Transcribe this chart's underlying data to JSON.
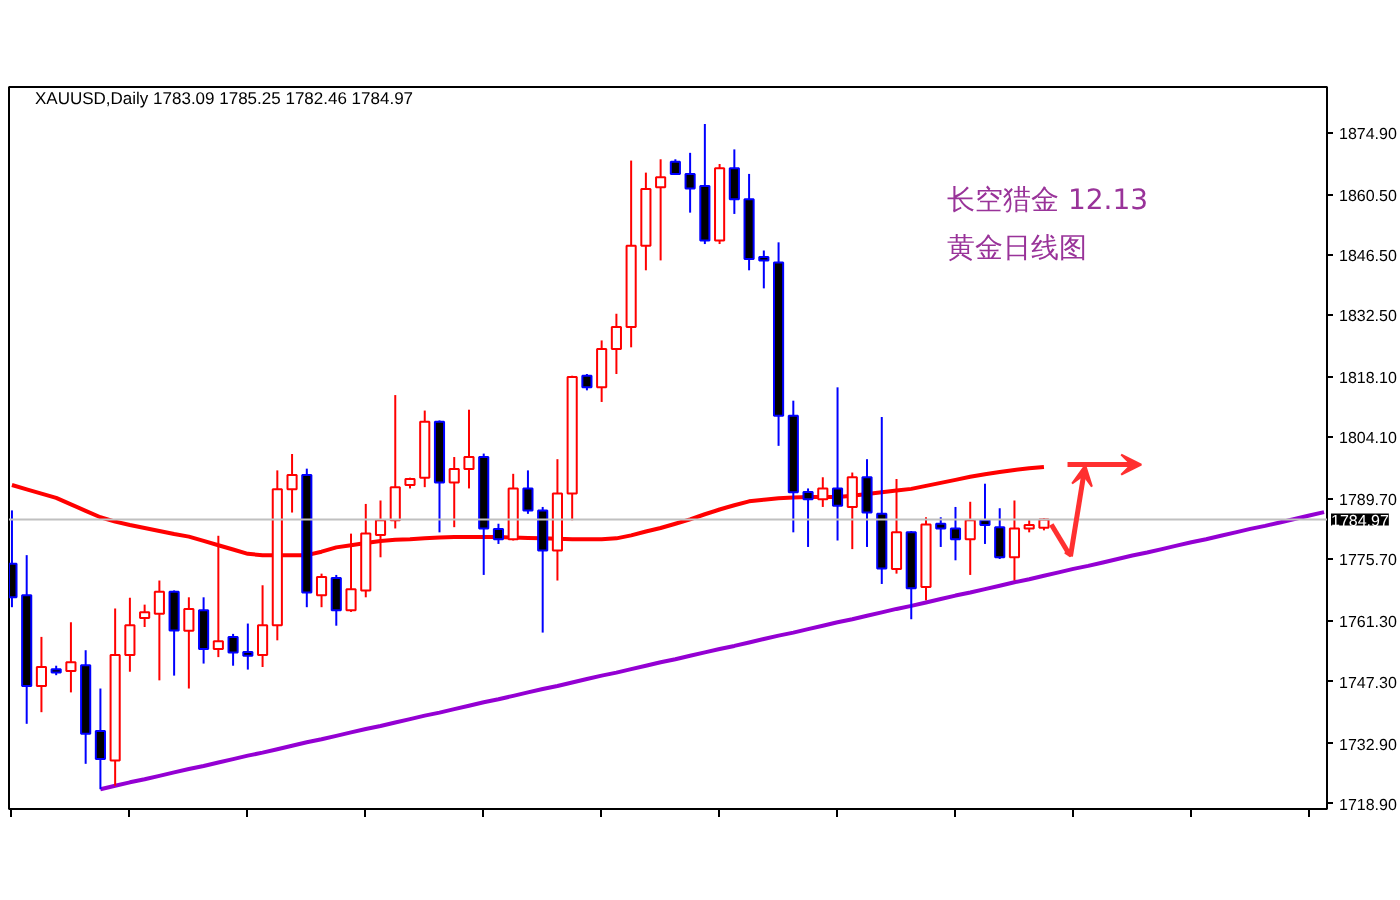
{
  "chart_data": {
    "type": "candlestick",
    "title": "XAUUSD,Daily 1783.09 1785.25 1782.46 1784.97",
    "annotations": [
      "长空猎金  12.13",
      "黄金日线图"
    ],
    "categories": [
      null,
      null,
      null,
      null,
      null,
      null,
      null,
      null,
      null,
      null,
      null,
      null,
      null,
      null,
      null,
      null,
      null,
      null,
      null,
      null,
      null,
      null,
      null,
      null,
      null,
      null,
      null,
      null,
      null,
      null,
      null,
      null,
      null,
      null,
      null,
      null,
      null,
      null,
      null,
      null,
      null,
      null,
      null,
      null,
      null,
      null,
      null,
      null,
      null,
      null,
      null,
      null,
      null,
      null,
      null,
      null,
      null,
      null,
      null,
      null,
      null,
      null,
      null,
      null,
      null,
      null,
      null,
      null,
      null,
      null,
      null,
      null,
      null,
      null,
      null,
      null,
      null,
      null,
      null,
      null,
      null,
      null,
      null,
      null,
      null,
      null,
      null,
      null,
      null,
      null
    ],
    "ohlc": [
      [
        1774.7,
        1787.1,
        1764.6,
        1766.9
      ],
      [
        1767.4,
        1776.7,
        1737.5,
        1746.3
      ],
      [
        1746.3,
        1757.7,
        1740.2,
        1750.7
      ],
      [
        1750.2,
        1751.0,
        1748.8,
        1749.4
      ],
      [
        1749.8,
        1761.1,
        1744.8,
        1751.8
      ],
      [
        1751.1,
        1754.6,
        1728.2,
        1735.2
      ],
      [
        1735.8,
        1745.7,
        1722.3,
        1729.3
      ],
      [
        1729.0,
        1764.3,
        1723.1,
        1753.5
      ],
      [
        1753.5,
        1766.8,
        1749.6,
        1760.4
      ],
      [
        1762.1,
        1765.2,
        1760.0,
        1763.4
      ],
      [
        1763.1,
        1770.8,
        1747.6,
        1768.2
      ],
      [
        1768.2,
        1768.5,
        1748.7,
        1759.2
      ],
      [
        1759.1,
        1766.9,
        1745.7,
        1764.2
      ],
      [
        1763.9,
        1766.9,
        1751.5,
        1754.9
      ],
      [
        1754.9,
        1781.2,
        1753.0,
        1756.7
      ],
      [
        1757.7,
        1758.4,
        1751.0,
        1754.1
      ],
      [
        1754.2,
        1760.8,
        1750.1,
        1753.3
      ],
      [
        1753.5,
        1769.7,
        1750.7,
        1760.4
      ],
      [
        1760.4,
        1796.4,
        1756.9,
        1792.0
      ],
      [
        1792.0,
        1800.2,
        1786.6,
        1795.3
      ],
      [
        1795.3,
        1796.8,
        1764.6,
        1768.0
      ],
      [
        1767.4,
        1772.4,
        1764.6,
        1771.6
      ],
      [
        1771.4,
        1772.1,
        1760.3,
        1763.9
      ],
      [
        1763.9,
        1781.7,
        1763.5,
        1768.8
      ],
      [
        1768.5,
        1788.6,
        1766.9,
        1781.7
      ],
      [
        1781.4,
        1789.4,
        1776.2,
        1784.8
      ],
      [
        1784.8,
        1813.9,
        1782.9,
        1792.5
      ],
      [
        1793.0,
        1794.7,
        1792.2,
        1794.4
      ],
      [
        1794.7,
        1810.3,
        1792.5,
        1807.7
      ],
      [
        1807.7,
        1808.0,
        1782.0,
        1793.6
      ],
      [
        1793.6,
        1799.5,
        1783.2,
        1796.7
      ],
      [
        1796.7,
        1810.5,
        1792.2,
        1799.5
      ],
      [
        1799.5,
        1800.3,
        1772.1,
        1782.9
      ],
      [
        1782.8,
        1784.0,
        1779.3,
        1780.4
      ],
      [
        1780.4,
        1795.6,
        1780.1,
        1792.2
      ],
      [
        1792.2,
        1796.4,
        1786.3,
        1787.1
      ],
      [
        1787.1,
        1787.9,
        1758.7,
        1777.8
      ],
      [
        1777.8,
        1799.0,
        1770.8,
        1791.0
      ],
      [
        1791.0,
        1818.4,
        1784.8,
        1818.1
      ],
      [
        1818.4,
        1818.8,
        1815.0,
        1815.7
      ],
      [
        1815.7,
        1826.6,
        1812.3,
        1824.6
      ],
      [
        1824.6,
        1832.8,
        1818.8,
        1829.7
      ],
      [
        1829.7,
        1868.4,
        1825.0,
        1848.6
      ],
      [
        1848.6,
        1865.6,
        1842.9,
        1861.8
      ],
      [
        1862.2,
        1868.7,
        1845.2,
        1864.5
      ],
      [
        1868.1,
        1868.7,
        1865.3,
        1865.3
      ],
      [
        1865.3,
        1870.2,
        1856.3,
        1861.9
      ],
      [
        1862.5,
        1876.9,
        1849.0,
        1849.8
      ],
      [
        1849.8,
        1867.6,
        1849.0,
        1866.6
      ],
      [
        1866.6,
        1871.0,
        1856.0,
        1859.4
      ],
      [
        1859.4,
        1865.3,
        1842.9,
        1845.5
      ],
      [
        1846.0,
        1847.5,
        1838.7,
        1845.2
      ],
      [
        1844.7,
        1849.4,
        1802.1,
        1809.1
      ],
      [
        1809.1,
        1812.6,
        1782.0,
        1791.3
      ],
      [
        1791.4,
        1792.2,
        1778.6,
        1789.7
      ],
      [
        1789.7,
        1794.8,
        1787.9,
        1792.2
      ],
      [
        1792.2,
        1815.7,
        1780.1,
        1788.2
      ],
      [
        1787.9,
        1795.9,
        1778.1,
        1794.8
      ],
      [
        1794.8,
        1799.0,
        1778.6,
        1786.6
      ],
      [
        1786.3,
        1808.8,
        1770.0,
        1773.6
      ],
      [
        1773.5,
        1794.4,
        1772.4,
        1782.0
      ],
      [
        1782.0,
        1782.3,
        1761.8,
        1769.0
      ],
      [
        1769.3,
        1785.5,
        1766.2,
        1783.8
      ],
      [
        1784.0,
        1785.5,
        1778.6,
        1782.9
      ],
      [
        1782.9,
        1787.9,
        1775.5,
        1780.4
      ],
      [
        1780.4,
        1789.1,
        1772.1,
        1784.8
      ],
      [
        1784.8,
        1793.3,
        1779.3,
        1783.7
      ],
      [
        1783.2,
        1787.6,
        1775.8,
        1776.2
      ],
      [
        1776.2,
        1789.4,
        1770.8,
        1782.9
      ],
      [
        1782.9,
        1784.8,
        1782.0,
        1783.7
      ],
      [
        1783.09,
        1785.25,
        1782.46,
        1784.97
      ],
      null,
      null,
      null,
      null,
      null,
      null,
      null,
      null,
      null,
      null,
      null,
      null,
      null,
      null,
      null,
      null,
      null,
      null,
      null
    ],
    "colors": [
      "#0000ff",
      "#0000ff",
      "#ff0000",
      "#0000ff",
      "#ff0000",
      "#0000ff",
      "#0000ff",
      "#ff0000",
      "#ff0000",
      "#ff0000",
      "#ff0000",
      "#0000ff",
      "#ff0000",
      "#0000ff",
      "#ff0000",
      "#0000ff",
      "#0000ff",
      "#ff0000",
      "#ff0000",
      "#ff0000",
      "#0000ff",
      "#ff0000",
      "#0000ff",
      "#ff0000",
      "#ff0000",
      "#ff0000",
      "#ff0000",
      "#ff0000",
      "#ff0000",
      "#0000ff",
      "#ff0000",
      "#ff0000",
      "#0000ff",
      "#0000ff",
      "#ff0000",
      "#0000ff",
      "#0000ff",
      "#ff0000",
      "#ff0000",
      "#0000ff",
      "#ff0000",
      "#ff0000",
      "#ff0000",
      "#ff0000",
      "#ff0000",
      "#0000ff",
      "#0000ff",
      "#0000ff",
      "#ff0000",
      "#0000ff",
      "#0000ff",
      "#0000ff",
      "#0000ff",
      "#0000ff",
      "#0000ff",
      "#ff0000",
      "#0000ff",
      "#ff0000",
      "#0000ff",
      "#0000ff",
      "#ff0000",
      "#0000ff",
      "#ff0000",
      "#0000ff",
      "#0000ff",
      "#ff0000",
      "#0000ff",
      "#0000ff",
      "#ff0000",
      "#ff0000",
      "#ff0000",
      null,
      null,
      null,
      null,
      null,
      null,
      null,
      null,
      null,
      null,
      null,
      null,
      null,
      null,
      null,
      null,
      null,
      null,
      null
    ],
    "series": [
      {
        "type": "line",
        "color": "#ff0000",
        "values": [
          1793.0,
          1792.0,
          1791.0,
          1790.0,
          1788.5,
          1787.0,
          1785.5,
          1784.5,
          1783.7,
          1783.0,
          1782.3,
          1781.6,
          1781.0,
          1780.0,
          1779.0,
          1778.0,
          1777.0,
          1776.7,
          1776.7,
          1776.7,
          1776.7,
          1777.5,
          1778.5,
          1779.0,
          1779.5,
          1780.0,
          1780.3,
          1780.4,
          1780.6,
          1780.8,
          1780.9,
          1780.9,
          1780.9,
          1780.9,
          1780.8,
          1780.7,
          1780.6,
          1780.5,
          1780.4,
          1780.4,
          1780.4,
          1780.6,
          1781.3,
          1782.2,
          1783.0,
          1784.0,
          1785.0,
          1786.2,
          1787.3,
          1788.3,
          1789.2,
          1789.6,
          1789.9,
          1790.1,
          1790.2,
          1790.2,
          1790.2,
          1790.5,
          1790.9,
          1791.3,
          1791.7,
          1792.1,
          1792.8,
          1793.5,
          1794.2,
          1794.9,
          1795.5,
          1796.0,
          1796.5,
          1796.9,
          1797.2,
          null,
          null,
          null,
          null,
          null,
          null,
          null,
          null,
          null,
          null,
          null,
          null,
          null,
          null,
          null,
          null,
          null,
          null,
          null
        ]
      },
      {
        "type": "line",
        "color": "#9400d3",
        "values": [
          null,
          null,
          null,
          null,
          null,
          null,
          1722.3,
          1723.1,
          1723.9,
          1724.6,
          1725.4,
          1726.2,
          1727.0,
          1727.7,
          1728.5,
          1729.3,
          1730.1,
          1730.8,
          1731.6,
          1732.4,
          1733.2,
          1733.9,
          1734.7,
          1735.5,
          1736.3,
          1737.0,
          1737.8,
          1738.6,
          1739.4,
          1740.1,
          1740.9,
          1741.7,
          1742.5,
          1743.2,
          1744.0,
          1744.8,
          1745.6,
          1746.3,
          1747.1,
          1747.9,
          1748.7,
          1749.4,
          1750.2,
          1751.0,
          1751.8,
          1752.5,
          1753.3,
          1754.1,
          1754.9,
          1755.6,
          1756.4,
          1757.2,
          1758.0,
          1758.7,
          1759.5,
          1760.3,
          1761.1,
          1761.8,
          1762.6,
          1763.4,
          1764.2,
          1764.9,
          1765.7,
          1766.5,
          1767.3,
          1768.0,
          1768.8,
          1769.6,
          1770.4,
          1771.1,
          1771.9,
          1772.7,
          1773.5,
          1774.2,
          1775.0,
          1775.8,
          1776.6,
          1777.3,
          1778.1,
          1778.9,
          1779.7,
          1780.4,
          1781.2,
          1782.0,
          1782.8,
          1783.5,
          1784.3,
          1785.1,
          1785.9,
          1786.7
        ]
      }
    ],
    "ylim": [
      1717.7,
      1885.5
    ],
    "yticks": [
      {
        "value": 1718.9,
        "label": "1718.90"
      },
      {
        "value": 1732.9,
        "label": "1732.90"
      },
      {
        "value": 1747.3,
        "label": "1747.30"
      },
      {
        "value": 1761.3,
        "label": "1761.30"
      },
      {
        "value": 1775.7,
        "label": "1775.70"
      },
      {
        "value": 1789.7,
        "label": "1789.70"
      },
      {
        "value": 1804.1,
        "label": "1804.10"
      },
      {
        "value": 1818.1,
        "label": "1818.10"
      },
      {
        "value": 1832.5,
        "label": "1832.50"
      },
      {
        "value": 1846.5,
        "label": "1846.50"
      },
      {
        "value": 1860.5,
        "label": "1860.50"
      },
      {
        "value": 1874.9,
        "label": "1874.90"
      }
    ],
    "ref_lines": [
      {
        "axis": "y",
        "value": 1784.97,
        "label": "1784.97",
        "color": "#c0c0c0"
      }
    ],
    "grid": false,
    "tick_labels": "y"
  }
}
